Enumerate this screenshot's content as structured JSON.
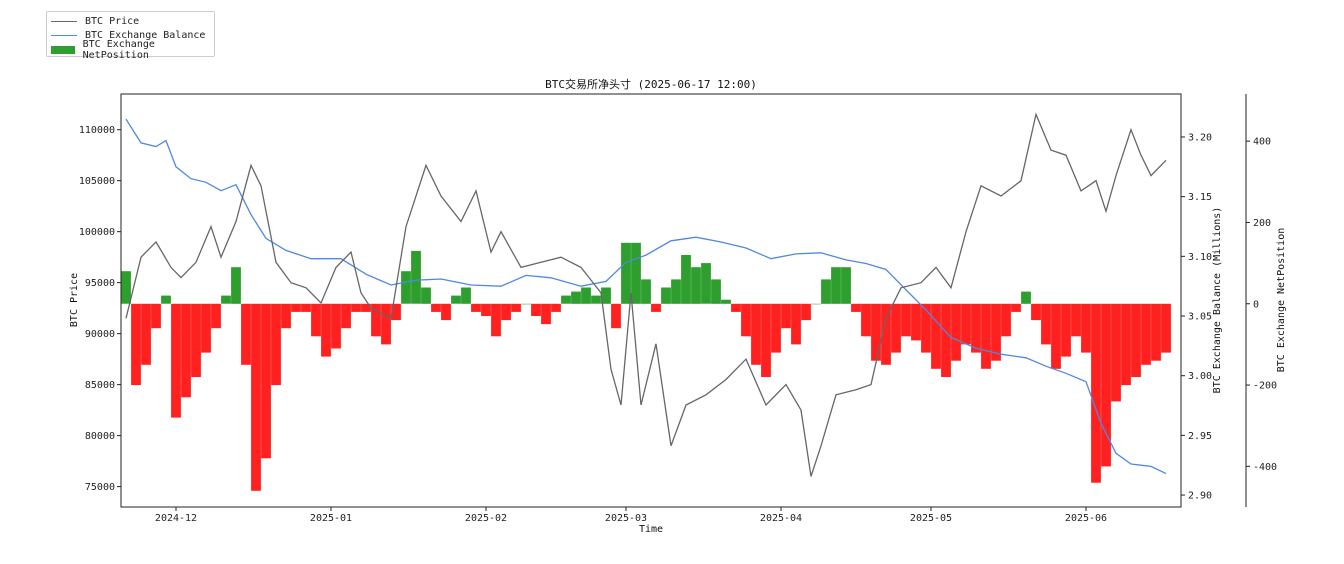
{
  "chart_data": {
    "type": "line",
    "title": "BTC交易所净头寸 (2025-06-17 12:00)",
    "xlabel": "Time",
    "ylabel_left": "BTC Price",
    "ylabel_right1": "BTC Exchange Balance (Millions)",
    "ylabel_right2": "BTC Exchange NetPosition",
    "x_ticks": [
      "2024-12",
      "2025-01",
      "2025-02",
      "2025-03",
      "2025-04",
      "2025-05",
      "2025-06"
    ],
    "x_tick_dates": [
      "2024-12-01",
      "2025-01-01",
      "2025-02-01",
      "2025-03-01",
      "2025-04-01",
      "2025-05-01",
      "2025-06-01"
    ],
    "xlim": [
      "2024-11-20",
      "2025-06-20"
    ],
    "price_ylim": [
      73000,
      113500
    ],
    "price_ticks": [
      75000,
      80000,
      85000,
      90000,
      95000,
      100000,
      105000,
      110000
    ],
    "balance_ylim": [
      2.89,
      3.236
    ],
    "balance_ticks": [
      "2.90",
      "2.95",
      "3.00",
      "3.05",
      "3.10",
      "3.15",
      "3.20"
    ],
    "balance_tick_values": [
      2.9,
      2.95,
      3.0,
      3.05,
      3.1,
      3.15,
      3.2
    ],
    "netpos_ylim": [
      -500,
      516
    ],
    "netpos_ticks": [
      -400,
      -200,
      0,
      200,
      400
    ],
    "legend": {
      "placement": "top-left (outside plot)",
      "entries": [
        {
          "label": "BTC Price",
          "color": "#666666",
          "kind": "line"
        },
        {
          "label": "BTC Exchange Balance",
          "color": "#4f88e0",
          "kind": "line"
        },
        {
          "label": "BTC Exchange NetPosition",
          "color": "#2e9e2e",
          "kind": "bar"
        }
      ]
    },
    "series": [
      {
        "name": "BTC Price",
        "axis": "left",
        "color": "#666666",
        "x": [
          "2024-11-21",
          "2024-11-24",
          "2024-11-27",
          "2024-11-30",
          "2024-12-02",
          "2024-12-05",
          "2024-12-08",
          "2024-12-10",
          "2024-12-13",
          "2024-12-16",
          "2024-12-18",
          "2024-12-21",
          "2024-12-24",
          "2024-12-27",
          "2024-12-30",
          "2025-01-02",
          "2025-01-05",
          "2025-01-07",
          "2025-01-09",
          "2025-01-13",
          "2025-01-16",
          "2025-01-20",
          "2025-01-23",
          "2025-01-27",
          "2025-01-30",
          "2025-02-02",
          "2025-02-04",
          "2025-02-08",
          "2025-02-12",
          "2025-02-16",
          "2025-02-20",
          "2025-02-24",
          "2025-02-26",
          "2025-02-28",
          "2025-03-02",
          "2025-03-04",
          "2025-03-07",
          "2025-03-10",
          "2025-03-13",
          "2025-03-17",
          "2025-03-21",
          "2025-03-25",
          "2025-03-29",
          "2025-04-02",
          "2025-04-05",
          "2025-04-07",
          "2025-04-09",
          "2025-04-12",
          "2025-04-16",
          "2025-04-19",
          "2025-04-22",
          "2025-04-25",
          "2025-04-29",
          "2025-05-02",
          "2025-05-05",
          "2025-05-08",
          "2025-05-11",
          "2025-05-15",
          "2025-05-19",
          "2025-05-22",
          "2025-05-25",
          "2025-05-28",
          "2025-05-31",
          "2025-06-03",
          "2025-06-05",
          "2025-06-07",
          "2025-06-10",
          "2025-06-12",
          "2025-06-14",
          "2025-06-17"
        ],
        "values": [
          91500,
          97500,
          99000,
          96500,
          95500,
          97000,
          100500,
          97500,
          101000,
          106500,
          104500,
          97000,
          95000,
          94500,
          93000,
          96500,
          98000,
          94000,
          92500,
          91500,
          100500,
          106500,
          103500,
          101000,
          104000,
          98000,
          100000,
          96500,
          97000,
          97500,
          96500,
          94000,
          86500,
          83000,
          94000,
          83000,
          89000,
          79000,
          83000,
          84000,
          85500,
          87500,
          83000,
          85000,
          82500,
          76000,
          79000,
          84000,
          84500,
          85000,
          91500,
          94500,
          95000,
          96500,
          94500,
          100000,
          104500,
          103500,
          105000,
          111500,
          108000,
          107500,
          104000,
          105000,
          102000,
          105500,
          110000,
          107500,
          105500,
          107000
        ]
      },
      {
        "name": "BTC Exchange Balance",
        "axis": "right1",
        "color": "#4f88e0",
        "x": [
          "2024-11-21",
          "2024-11-24",
          "2024-11-27",
          "2024-11-29",
          "2024-12-01",
          "2024-12-04",
          "2024-12-07",
          "2024-12-10",
          "2024-12-13",
          "2024-12-16",
          "2024-12-19",
          "2024-12-23",
          "2024-12-28",
          "2025-01-03",
          "2025-01-08",
          "2025-01-13",
          "2025-01-18",
          "2025-01-23",
          "2025-01-29",
          "2025-02-04",
          "2025-02-09",
          "2025-02-14",
          "2025-02-20",
          "2025-02-25",
          "2025-03-01",
          "2025-03-05",
          "2025-03-10",
          "2025-03-15",
          "2025-03-20",
          "2025-03-25",
          "2025-03-30",
          "2025-04-04",
          "2025-04-09",
          "2025-04-14",
          "2025-04-18",
          "2025-04-22",
          "2025-04-26",
          "2025-04-30",
          "2025-05-05",
          "2025-05-10",
          "2025-05-15",
          "2025-05-20",
          "2025-05-24",
          "2025-05-28",
          "2025-06-01",
          "2025-06-04",
          "2025-06-07",
          "2025-06-10",
          "2025-06-14",
          "2025-06-17"
        ],
        "values": [
          3.215,
          3.195,
          3.192,
          3.197,
          3.175,
          3.165,
          3.162,
          3.155,
          3.16,
          3.135,
          3.115,
          3.105,
          3.098,
          3.098,
          3.085,
          3.076,
          3.08,
          3.081,
          3.076,
          3.075,
          3.084,
          3.082,
          3.075,
          3.079,
          3.095,
          3.101,
          3.113,
          3.116,
          3.112,
          3.107,
          3.098,
          3.102,
          3.103,
          3.097,
          3.094,
          3.089,
          3.072,
          3.055,
          3.032,
          3.023,
          3.018,
          3.015,
          3.008,
          3.002,
          2.995,
          2.96,
          2.935,
          2.926,
          2.924,
          2.918
        ]
      },
      {
        "name": "BTC Exchange NetPosition",
        "axis": "right2",
        "color_positive": "#2e9e2e",
        "color_negative": "#ff2020",
        "kind": "bar",
        "x": [
          "2024-11-21",
          "2024-11-23",
          "2024-11-25",
          "2024-11-27",
          "2024-11-29",
          "2024-12-01",
          "2024-12-03",
          "2024-12-05",
          "2024-12-07",
          "2024-12-09",
          "2024-12-11",
          "2024-12-13",
          "2024-12-15",
          "2024-12-17",
          "2024-12-19",
          "2024-12-21",
          "2024-12-23",
          "2024-12-25",
          "2024-12-27",
          "2024-12-29",
          "2024-12-31",
          "2025-01-02",
          "2025-01-04",
          "2025-01-06",
          "2025-01-08",
          "2025-01-10",
          "2025-01-12",
          "2025-01-14",
          "2025-01-16",
          "2025-01-18",
          "2025-01-20",
          "2025-01-22",
          "2025-01-24",
          "2025-01-26",
          "2025-01-28",
          "2025-01-30",
          "2025-02-01",
          "2025-02-03",
          "2025-02-05",
          "2025-02-07",
          "2025-02-09",
          "2025-02-11",
          "2025-02-13",
          "2025-02-15",
          "2025-02-17",
          "2025-02-19",
          "2025-02-21",
          "2025-02-23",
          "2025-02-25",
          "2025-02-27",
          "2025-03-01",
          "2025-03-03",
          "2025-03-05",
          "2025-03-07",
          "2025-03-09",
          "2025-03-11",
          "2025-03-13",
          "2025-03-15",
          "2025-03-17",
          "2025-03-19",
          "2025-03-21",
          "2025-03-23",
          "2025-03-25",
          "2025-03-27",
          "2025-03-29",
          "2025-03-31",
          "2025-04-02",
          "2025-04-04",
          "2025-04-06",
          "2025-04-08",
          "2025-04-10",
          "2025-04-12",
          "2025-04-14",
          "2025-04-16",
          "2025-04-18",
          "2025-04-20",
          "2025-04-22",
          "2025-04-24",
          "2025-04-26",
          "2025-04-28",
          "2025-04-30",
          "2025-05-02",
          "2025-05-04",
          "2025-05-06",
          "2025-05-08",
          "2025-05-10",
          "2025-05-12",
          "2025-05-14",
          "2025-05-16",
          "2025-05-18",
          "2025-05-20",
          "2025-05-22",
          "2025-05-24",
          "2025-05-26",
          "2025-05-28",
          "2025-05-30",
          "2025-06-01",
          "2025-06-03",
          "2025-06-05",
          "2025-06-07",
          "2025-06-09",
          "2025-06-11",
          "2025-06-13",
          "2025-06-15",
          "2025-06-17"
        ],
        "values": [
          80,
          -200,
          -150,
          -60,
          20,
          -280,
          -230,
          -180,
          -120,
          -60,
          20,
          90,
          -150,
          -460,
          -380,
          -200,
          -60,
          -20,
          -20,
          -80,
          -130,
          -110,
          -60,
          -20,
          -20,
          -80,
          -100,
          -40,
          80,
          130,
          40,
          -20,
          -40,
          20,
          40,
          -20,
          -30,
          -80,
          -40,
          -20,
          0,
          -30,
          -50,
          -20,
          20,
          30,
          40,
          20,
          40,
          -60,
          150,
          150,
          60,
          -20,
          40,
          60,
          120,
          90,
          100,
          60,
          10,
          -20,
          -80,
          -150,
          -180,
          -120,
          -60,
          -100,
          -40,
          0,
          60,
          90,
          90,
          -20,
          -80,
          -140,
          -150,
          -120,
          -80,
          -90,
          -120,
          -160,
          -180,
          -140,
          -100,
          -120,
          -160,
          -140,
          -80,
          -20,
          30,
          -40,
          -100,
          -160,
          -130,
          -80,
          -120,
          -440,
          -400,
          -240,
          -200,
          -180,
          -150,
          -140,
          -120
        ]
      }
    ]
  }
}
